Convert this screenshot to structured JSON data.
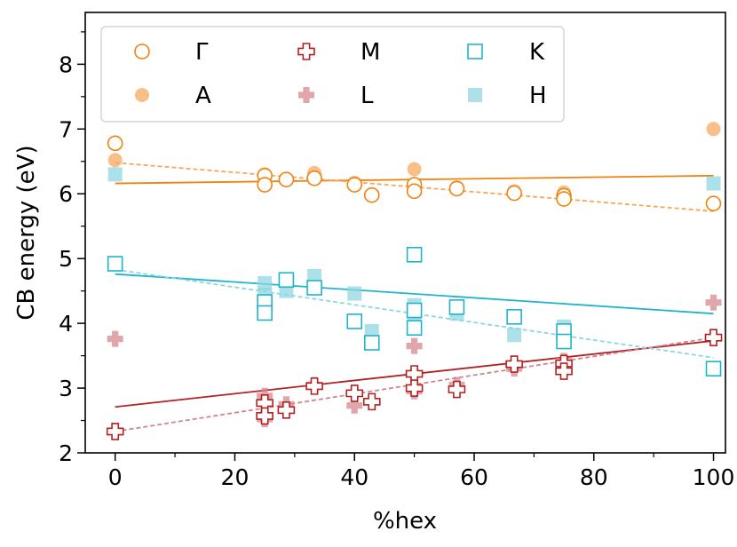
{
  "chart_data": {
    "type": "scatter",
    "xlabel": "%hex",
    "ylabel": "CB energy (eV)",
    "xlim": [
      -5,
      102
    ],
    "ylim": [
      2,
      8.8
    ],
    "xticks": [
      0,
      20,
      40,
      60,
      80,
      100
    ],
    "yticks": [
      2,
      3,
      4,
      5,
      6,
      7,
      8
    ],
    "legend_position": "top-left",
    "series": [
      {
        "name": "Γ",
        "marker": "circle",
        "filled": false,
        "color": "#f0820f",
        "x": [
          0,
          25,
          25,
          28.6,
          33.3,
          40,
          42.9,
          50,
          50,
          57.1,
          66.7,
          75,
          75,
          100
        ],
        "y": [
          6.78,
          6.28,
          6.14,
          6.22,
          6.24,
          6.14,
          5.98,
          6.14,
          6.04,
          6.08,
          6.01,
          5.97,
          5.92,
          5.85
        ],
        "fit": {
          "style": "solid",
          "x": [
            0,
            100
          ],
          "y": [
            6.16,
            6.28
          ]
        }
      },
      {
        "name": "A",
        "marker": "circle",
        "filled": true,
        "color": "#f5a85a",
        "x": [
          0,
          25,
          28.6,
          33.3,
          40,
          42.9,
          50,
          50,
          57.1,
          66.7,
          75,
          100
        ],
        "y": [
          6.52,
          6.3,
          6.23,
          6.32,
          6.17,
          5.98,
          6.38,
          6.1,
          6.1,
          6.04,
          6.02,
          7.0
        ],
        "fit": {
          "style": "dashed",
          "x": [
            0,
            100
          ],
          "y": [
            6.48,
            5.73
          ]
        }
      },
      {
        "name": "M",
        "marker": "plus",
        "filled": false,
        "color": "#b22222",
        "x": [
          0,
          25,
          25,
          28.6,
          33.3,
          40,
          42.9,
          50,
          50,
          57.1,
          66.7,
          75,
          75,
          100
        ],
        "y": [
          2.33,
          2.77,
          2.57,
          2.66,
          3.03,
          2.92,
          2.79,
          3.22,
          3.0,
          2.98,
          3.37,
          3.38,
          3.26,
          3.78
        ],
        "fit": {
          "style": "solid",
          "x": [
            0,
            100
          ],
          "y": [
            2.71,
            3.73
          ]
        }
      },
      {
        "name": "L",
        "marker": "plus",
        "filled": true,
        "color": "#d4848c",
        "x": [
          0,
          25,
          25,
          28.6,
          33.3,
          40,
          42.9,
          50,
          50,
          57.1,
          66.7,
          75,
          100
        ],
        "y": [
          3.76,
          2.88,
          2.52,
          2.75,
          3.05,
          2.73,
          2.8,
          3.65,
          2.95,
          3.05,
          3.3,
          3.42,
          4.32
        ],
        "fit": {
          "style": "dashed",
          "x": [
            0,
            100
          ],
          "y": [
            2.33,
            3.78
          ]
        }
      },
      {
        "name": "K",
        "marker": "square",
        "filled": false,
        "color": "#1fb4cc",
        "x": [
          0,
          25,
          25,
          28.6,
          33.3,
          40,
          42.9,
          50,
          50,
          50,
          57.1,
          66.7,
          75,
          75,
          100
        ],
        "y": [
          4.92,
          4.33,
          4.16,
          4.67,
          4.55,
          4.03,
          3.7,
          5.06,
          4.2,
          3.93,
          4.25,
          4.1,
          3.88,
          3.72,
          3.3
        ],
        "fit": {
          "style": "solid",
          "x": [
            0,
            100
          ],
          "y": [
            4.76,
            4.15
          ]
        }
      },
      {
        "name": "H",
        "marker": "square",
        "filled": true,
        "color": "#8ed6e0",
        "x": [
          0,
          25,
          25,
          28.6,
          33.3,
          40,
          42.9,
          50,
          50,
          57.1,
          66.7,
          75,
          75,
          100
        ],
        "y": [
          6.3,
          4.62,
          4.44,
          4.5,
          4.73,
          4.46,
          3.88,
          4.28,
          4.05,
          4.15,
          3.82,
          3.95,
          3.82,
          6.16
        ],
        "fit": {
          "style": "dashed",
          "x": [
            0,
            100
          ],
          "y": [
            4.83,
            3.47
          ]
        }
      }
    ]
  }
}
